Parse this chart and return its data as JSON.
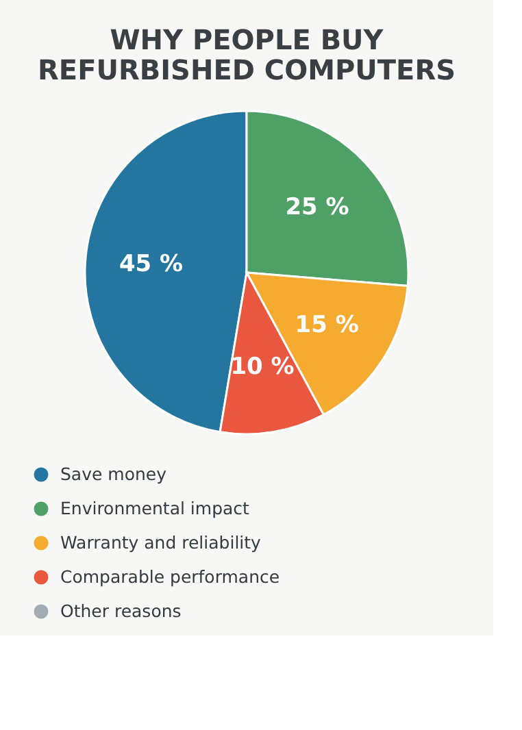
{
  "chart_data": {
    "type": "pie",
    "title": "WHY PEOPLE BUY\nREFURBISHED COMPUTERS",
    "categories": [
      "Save money",
      "Environmental impact",
      "Warranty and reliability",
      "Comparable performance",
      "Other reasons"
    ],
    "values": [
      45,
      25,
      15,
      10,
      null
    ],
    "colors": [
      "#2476a0",
      "#4fa066",
      "#f5aa30",
      "#e8573e",
      "#a3abb3"
    ],
    "value_labels": [
      "45 %",
      "25 %",
      "15 %",
      "10 %",
      null
    ],
    "legend": "bottom"
  }
}
